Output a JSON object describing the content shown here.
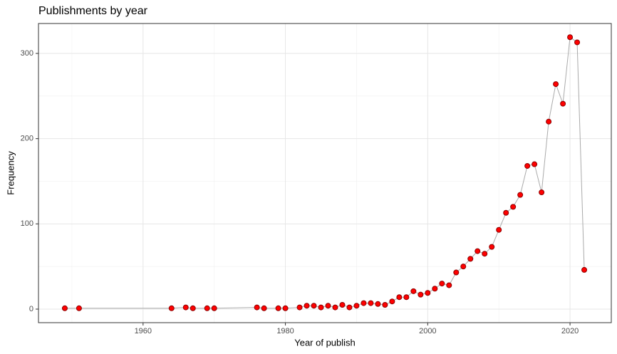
{
  "chart_data": {
    "type": "line",
    "title": "Publishments by year",
    "x_label": "Year of publish",
    "y_label": "Frequency",
    "x": [
      1949,
      1951,
      1964,
      1966,
      1967,
      1969,
      1970,
      1976,
      1977,
      1979,
      1980,
      1982,
      1983,
      1984,
      1985,
      1986,
      1987,
      1988,
      1989,
      1990,
      1991,
      1992,
      1993,
      1994,
      1995,
      1996,
      1997,
      1998,
      1999,
      2000,
      2001,
      2002,
      2003,
      2004,
      2005,
      2006,
      2007,
      2008,
      2009,
      2010,
      2011,
      2012,
      2013,
      2014,
      2015,
      2016,
      2017,
      2018,
      2019,
      2020,
      2021,
      2022
    ],
    "series": [
      {
        "name": "Frequency",
        "color": "#ff0000",
        "line_color": "#aaaaaa",
        "values": [
          1,
          1,
          1,
          2,
          1,
          1,
          1,
          2,
          1,
          1,
          1,
          2,
          4,
          4,
          2,
          4,
          2,
          5,
          2,
          4,
          7,
          7,
          6,
          5,
          9,
          14,
          14,
          21,
          17,
          19,
          24,
          30,
          28,
          43,
          50,
          59,
          68,
          65,
          73,
          93,
          113,
          120,
          134,
          168,
          170,
          137,
          220,
          264,
          241,
          319,
          313,
          46
        ]
      }
    ],
    "xlim": [
      1945.3,
      2025.8
    ],
    "xticks": [
      1960,
      1980,
      2000,
      2020
    ],
    "x_minor_ticks": [
      1950,
      1970,
      1990,
      2010
    ],
    "ylim": [
      -15.9,
      335.1
    ],
    "yticks": [
      0,
      100,
      200,
      300
    ],
    "y_minor_ticks": [
      50,
      150,
      250
    ],
    "grid": true
  }
}
